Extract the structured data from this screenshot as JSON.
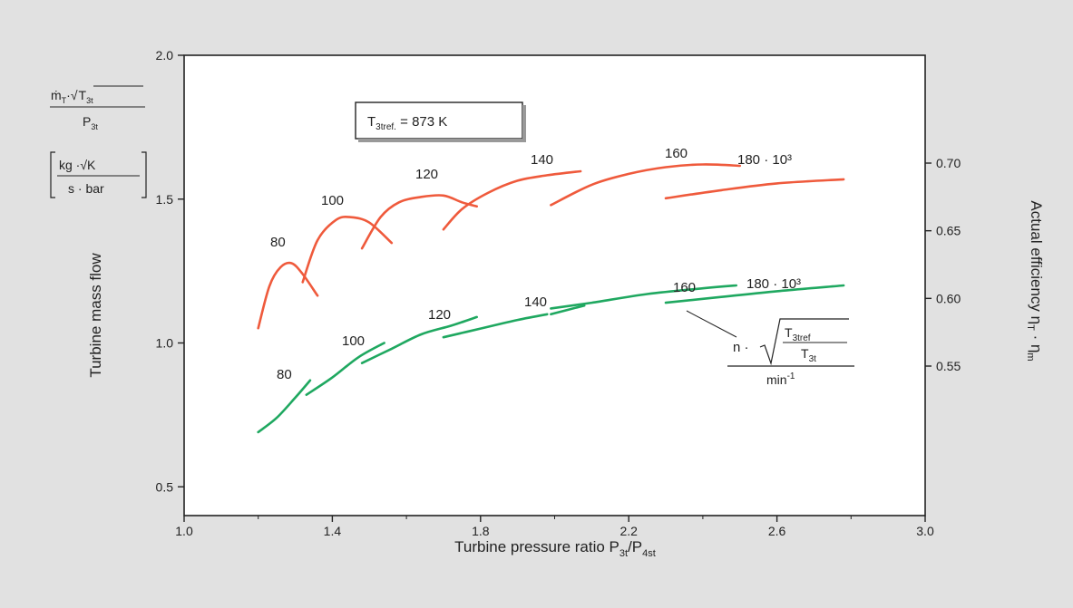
{
  "chart_data": {
    "type": "line",
    "title": "",
    "xlabel": {
      "main": "Turbine pressure ratio P",
      "sub1": "3t",
      "mid": "/P",
      "sub2": "4st"
    },
    "ylabel_left": "Turbine mass flow",
    "ylabel_right": {
      "main": "Actual efficiency η",
      "sub1": "T",
      "mid": " · η",
      "sub2": "m"
    },
    "left_axis_units": {
      "numerator_m": "ṁ",
      "numerator_m_sub": "T",
      "numerator_root": "·√",
      "numerator_T": "T",
      "numerator_T_sub": "3t",
      "denominator_P": "P",
      "denominator_P_sub": "3t",
      "unit_top": "kg ·√K",
      "unit_bottom": "s · bar"
    },
    "reference_box": {
      "prefix": "T",
      "sub": "3tref.",
      "suffix": " = 873 K"
    },
    "speed_parameter_label": {
      "n": "n ·",
      "T_top": "T",
      "T_top_sub": "3tref",
      "T_bottom": "T",
      "T_bottom_sub": "3t",
      "unit": "min",
      "unit_sup": "-1"
    },
    "xlim": [
      1.0,
      3.0
    ],
    "ylim_left": [
      0.4,
      2.0
    ],
    "ylim_right": [
      0.54,
      0.7
    ],
    "x_ticks": [
      "1.0",
      "1.4",
      "1.8",
      "2.2",
      "2.6",
      "3.0"
    ],
    "y_ticks_left": [
      "0.5",
      "1.0",
      "1.5",
      "2.0"
    ],
    "y_ticks_right": [
      "0.55",
      "0.60",
      "0.65",
      "0.70"
    ],
    "colors": {
      "efficiency": "#ef5a3c",
      "mass_flow": "#1fa860",
      "axis": "#222222"
    },
    "efficiency_series": [
      {
        "label": "80",
        "axis": "right",
        "points": [
          [
            1.2,
            0.578
          ],
          [
            1.23,
            0.609
          ],
          [
            1.26,
            0.623
          ],
          [
            1.29,
            0.626
          ],
          [
            1.32,
            0.618
          ],
          [
            1.36,
            0.602
          ]
        ]
      },
      {
        "label": "100",
        "axis": "right",
        "points": [
          [
            1.32,
            0.612
          ],
          [
            1.36,
            0.643
          ],
          [
            1.41,
            0.658
          ],
          [
            1.45,
            0.66
          ],
          [
            1.5,
            0.656
          ],
          [
            1.56,
            0.641
          ]
        ]
      },
      {
        "label": "120",
        "axis": "right",
        "points": [
          [
            1.48,
            0.637
          ],
          [
            1.53,
            0.66
          ],
          [
            1.58,
            0.671
          ],
          [
            1.64,
            0.675
          ],
          [
            1.7,
            0.676
          ],
          [
            1.75,
            0.671
          ],
          [
            1.79,
            0.668
          ]
        ]
      },
      {
        "label": "140",
        "axis": "right",
        "points": [
          [
            1.7,
            0.651
          ],
          [
            1.75,
            0.666
          ],
          [
            1.82,
            0.678
          ],
          [
            1.9,
            0.687
          ],
          [
            1.98,
            0.691
          ],
          [
            2.07,
            0.694
          ]
        ]
      },
      {
        "label": "160",
        "axis": "right",
        "points": [
          [
            1.99,
            0.669
          ],
          [
            2.1,
            0.684
          ],
          [
            2.2,
            0.692
          ],
          [
            2.3,
            0.697
          ],
          [
            2.4,
            0.699
          ],
          [
            2.5,
            0.698
          ]
        ]
      },
      {
        "label": "180 · 10³",
        "axis": "right",
        "points": [
          [
            2.3,
            0.674
          ],
          [
            2.45,
            0.68
          ],
          [
            2.6,
            0.685
          ],
          [
            2.78,
            0.688
          ]
        ]
      }
    ],
    "mass_flow_series": [
      {
        "label": "80",
        "axis": "left",
        "points": [
          [
            1.2,
            0.69
          ],
          [
            1.25,
            0.74
          ],
          [
            1.3,
            0.81
          ],
          [
            1.34,
            0.87
          ]
        ]
      },
      {
        "label": "100",
        "axis": "left",
        "points": [
          [
            1.33,
            0.82
          ],
          [
            1.4,
            0.88
          ],
          [
            1.47,
            0.95
          ],
          [
            1.54,
            1.0
          ]
        ]
      },
      {
        "label": "120",
        "axis": "left",
        "points": [
          [
            1.48,
            0.93
          ],
          [
            1.56,
            0.98
          ],
          [
            1.64,
            1.03
          ],
          [
            1.72,
            1.06
          ],
          [
            1.79,
            1.09
          ]
        ]
      },
      {
        "label": "140",
        "axis": "left",
        "points": [
          [
            1.7,
            1.02
          ],
          [
            1.8,
            1.05
          ],
          [
            1.9,
            1.08
          ],
          [
            1.98,
            1.1
          ]
        ]
      },
      {
        "label": "140b",
        "axis": "left",
        "points": [
          [
            1.99,
            1.1
          ],
          [
            2.08,
            1.13
          ]
        ]
      },
      {
        "label": "160",
        "axis": "left",
        "points": [
          [
            1.99,
            1.12
          ],
          [
            2.1,
            1.14
          ],
          [
            2.25,
            1.17
          ],
          [
            2.4,
            1.19
          ],
          [
            2.49,
            1.2
          ]
        ]
      },
      {
        "label": "180 · 10³",
        "axis": "left",
        "points": [
          [
            2.3,
            1.14
          ],
          [
            2.45,
            1.16
          ],
          [
            2.6,
            1.18
          ],
          [
            2.78,
            1.2
          ]
        ]
      }
    ],
    "curve_labels": {
      "efficiency": [
        "80",
        "100",
        "120",
        "140",
        "160",
        "180 · 10³"
      ],
      "mass_flow": [
        "80",
        "100",
        "120",
        "140",
        "160",
        "180 · 10³"
      ]
    }
  }
}
